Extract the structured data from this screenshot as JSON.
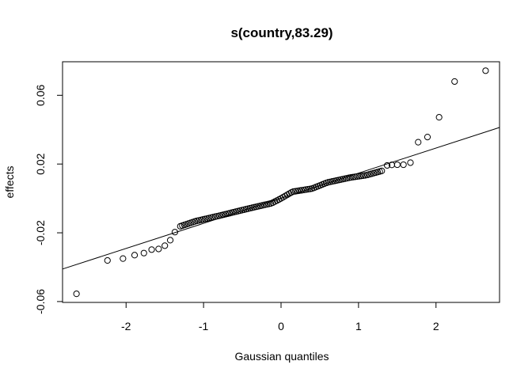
{
  "chart_data": {
    "type": "scatter",
    "title": "s(country,83.29)",
    "xlabel": "Gaussian quantiles",
    "ylabel": "effects",
    "xlim": [
      -2.82,
      2.82
    ],
    "ylim": [
      -0.0605,
      0.0795
    ],
    "x_ticks": [
      -2,
      -1,
      0,
      1,
      2
    ],
    "x_tick_labels": [
      "-2",
      "-1",
      "0",
      "1",
      "2"
    ],
    "y_ticks": [
      -0.06,
      -0.02,
      0.02,
      0.06
    ],
    "y_tick_labels": [
      "-0.06",
      "-0.02",
      "0.02",
      "0.06"
    ],
    "grid": false,
    "marker": "open-circle",
    "reference_line": {
      "intercept": 0.0001,
      "slope": 0.0146
    },
    "tail_points": [
      [
        -2.64,
        -0.0555
      ],
      [
        -2.24,
        -0.0361
      ],
      [
        -2.04,
        -0.035
      ],
      [
        -1.89,
        -0.033
      ],
      [
        -1.77,
        -0.0318
      ],
      [
        -1.67,
        -0.0298
      ],
      [
        -1.58,
        -0.0294
      ],
      [
        -1.5,
        -0.0275
      ],
      [
        -1.43,
        -0.0243
      ],
      [
        -1.37,
        -0.0196
      ],
      [
        1.37,
        0.0192
      ],
      [
        1.43,
        0.0195
      ],
      [
        1.5,
        0.0196
      ],
      [
        1.58,
        0.0196
      ],
      [
        1.67,
        0.0208
      ],
      [
        1.77,
        0.0327
      ],
      [
        1.89,
        0.0357
      ],
      [
        2.04,
        0.0472
      ],
      [
        2.24,
        0.068
      ],
      [
        2.64,
        0.0743
      ]
    ],
    "center_points": {
      "n": 99,
      "q_range": [
        -1.3,
        1.3
      ],
      "knots": [
        [
          -1.3,
          -0.0162
        ],
        [
          -1.1,
          -0.0132
        ],
        [
          -0.8,
          -0.0101
        ],
        [
          -0.4,
          -0.0057
        ],
        [
          -0.12,
          -0.0028
        ],
        [
          0.0,
          0.0
        ],
        [
          0.15,
          0.0039
        ],
        [
          0.4,
          0.0057
        ],
        [
          0.6,
          0.0093
        ],
        [
          0.9,
          0.0122
        ],
        [
          1.1,
          0.0135
        ],
        [
          1.3,
          0.016
        ]
      ]
    }
  }
}
